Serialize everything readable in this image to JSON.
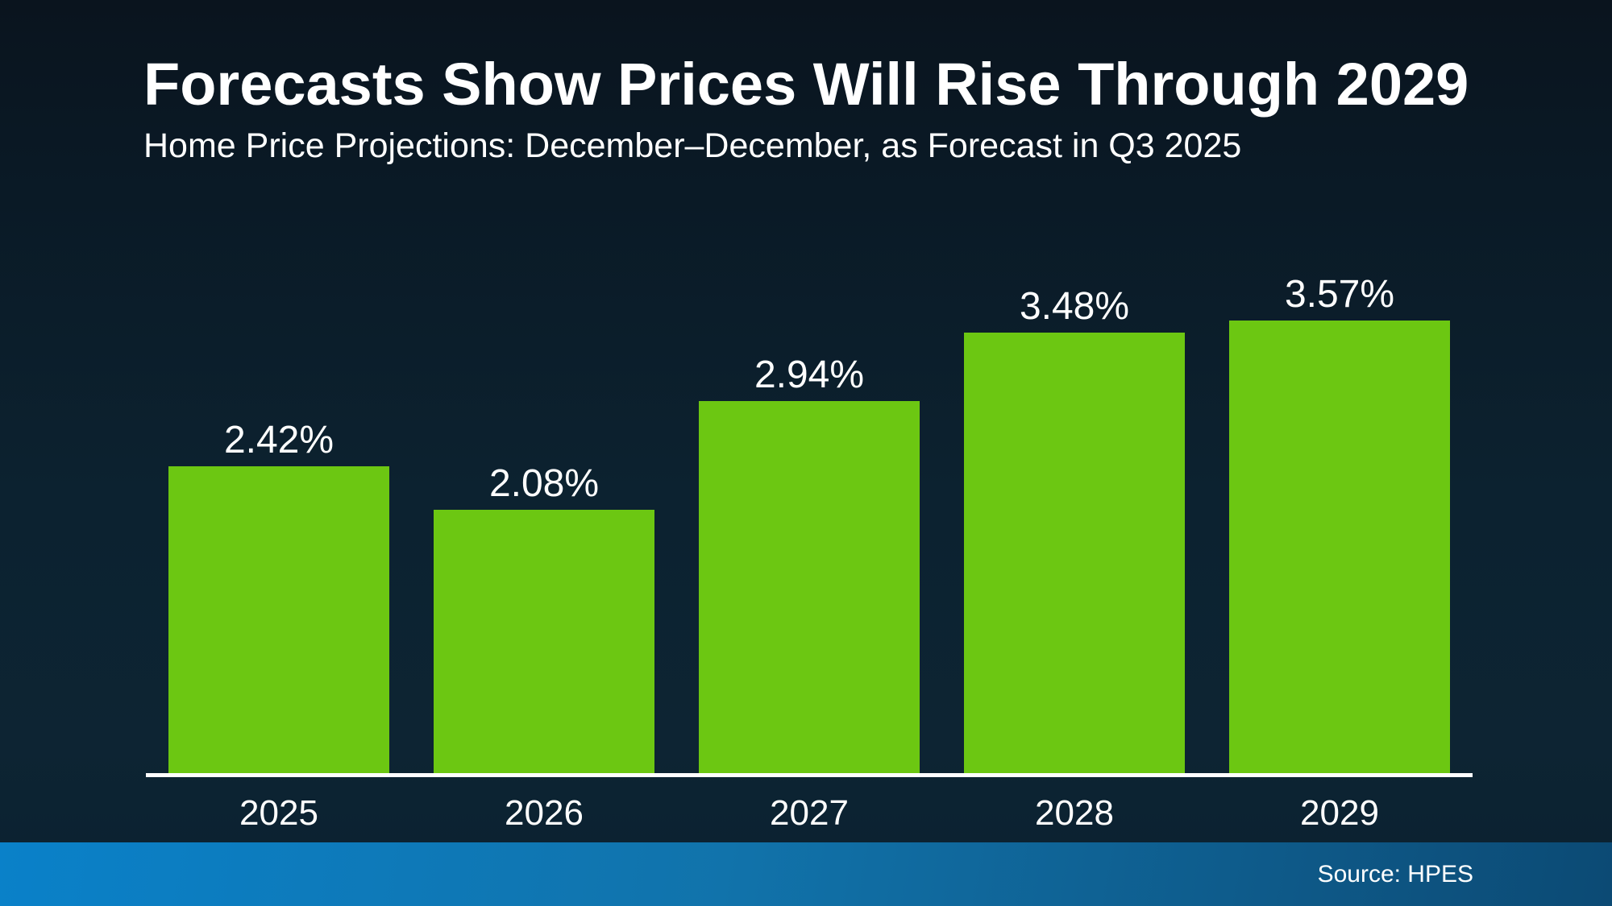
{
  "slide": {
    "title": "Forecasts Show Prices Will Rise Through 2029",
    "subtitle": "Home Price Projections: December–December, as Forecast in Q3 2025",
    "source_label": "Source: HPES"
  },
  "chart_data": {
    "type": "bar",
    "title": "Forecasts Show Prices Will Rise Through 2029",
    "subtitle": "Home Price Projections: December–December, as Forecast in Q3 2025",
    "categories": [
      "2025",
      "2026",
      "2027",
      "2028",
      "2029"
    ],
    "values": [
      2.42,
      2.08,
      2.94,
      3.48,
      3.57
    ],
    "data_labels": [
      "2.42%",
      "2.08%",
      "2.94%",
      "3.48%",
      "3.57%"
    ],
    "xlabel": "",
    "ylabel": "",
    "ylim": [
      0,
      4
    ],
    "grid": false,
    "legend": "none",
    "source": "Source: HPES"
  },
  "colors": {
    "background_top": "#0a141e",
    "background_bottom": "#0c2433",
    "bar_green": "#6cc712",
    "axis_line": "#ffffff",
    "footer_blue_left": "#0a81c9",
    "footer_blue_right": "#0c4a74",
    "text": "#ffffff"
  }
}
